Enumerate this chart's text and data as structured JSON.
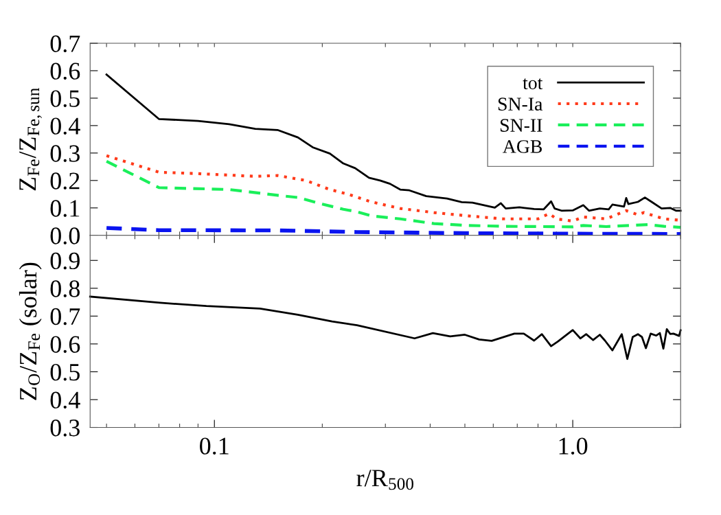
{
  "chart_data": [
    {
      "type": "line",
      "ylabel": "Z$_{Fe}$/Z$_{Fe,sun}$",
      "log": "x",
      "xlim": [
        0.045,
        2.0
      ],
      "xticks": [
        {
          "value": 0.05,
          "label": null
        },
        {
          "value": 0.06,
          "label": null
        },
        {
          "value": 0.07,
          "label": null
        },
        {
          "value": 0.08,
          "label": null
        },
        {
          "value": 0.09,
          "label": null
        },
        {
          "value": 0.1,
          "label": null
        },
        {
          "value": 0.2,
          "label": null
        },
        {
          "value": 0.3,
          "label": null
        },
        {
          "value": 0.4,
          "label": null
        },
        {
          "value": 0.5,
          "label": null
        },
        {
          "value": 0.6,
          "label": null
        },
        {
          "value": 0.7,
          "label": null
        },
        {
          "value": 0.8,
          "label": null
        },
        {
          "value": 0.9,
          "label": null
        },
        {
          "value": 1,
          "label": null
        },
        {
          "value": 2,
          "label": null
        }
      ],
      "ylim": [
        0.0,
        0.7
      ],
      "yticks": [
        {
          "value": 0,
          "label": "0.0"
        },
        0.1,
        0.2,
        0.3,
        0.4,
        0.5,
        0.6,
        0.7
      ],
      "tick_labels": "y",
      "legend": "top right",
      "grid": false,
      "series": [
        {
          "name": "tot",
          "color": "#000000",
          "line_style": "solid",
          "x": [
            0.05,
            0.07,
            0.09,
            0.11,
            0.13,
            0.15,
            0.171,
            0.188,
            0.21,
            0.229,
            0.247,
            0.27,
            0.29,
            0.309,
            0.33,
            0.35,
            0.39,
            0.446,
            0.49,
            0.525,
            0.606,
            0.63,
            0.65,
            0.71,
            0.78,
            0.83,
            0.87,
            0.89,
            0.93,
            1.0,
            1.07,
            1.11,
            1.19,
            1.26,
            1.29,
            1.39,
            1.41,
            1.43,
            1.52,
            1.59,
            1.66,
            1.77,
            1.87,
            1.94,
            2.0
          ],
          "values": [
            0.586,
            0.424,
            0.417,
            0.405,
            0.388,
            0.384,
            0.357,
            0.321,
            0.298,
            0.262,
            0.245,
            0.21,
            0.2,
            0.188,
            0.167,
            0.164,
            0.143,
            0.134,
            0.121,
            0.119,
            0.101,
            0.117,
            0.098,
            0.102,
            0.096,
            0.095,
            0.124,
            0.098,
            0.09,
            0.091,
            0.11,
            0.09,
            0.098,
            0.095,
            0.112,
            0.105,
            0.136,
            0.114,
            0.122,
            0.138,
            0.122,
            0.098,
            0.1,
            0.09,
            0.09
          ]
        },
        {
          "name": "SN-Ia",
          "color": "#ff3a1a",
          "line_style": "dotted",
          "x": [
            0.05,
            0.07,
            0.09,
            0.13,
            0.15,
            0.18,
            0.21,
            0.236,
            0.274,
            0.33,
            0.41,
            0.51,
            0.64,
            0.8,
            0.86,
            0.9,
            1.0,
            1.07,
            1.24,
            1.41,
            1.52,
            1.58,
            1.65,
            1.8,
            2.0
          ],
          "values": [
            0.29,
            0.23,
            0.225,
            0.215,
            0.218,
            0.2,
            0.167,
            0.15,
            0.122,
            0.098,
            0.083,
            0.071,
            0.06,
            0.06,
            0.079,
            0.06,
            0.052,
            0.067,
            0.06,
            0.09,
            0.075,
            0.083,
            0.075,
            0.06,
            0.055
          ]
        },
        {
          "name": "SN-II",
          "color": "#1aef5a",
          "line_style": "dashed",
          "x": [
            0.05,
            0.07,
            0.11,
            0.15,
            0.171,
            0.2,
            0.229,
            0.25,
            0.274,
            0.33,
            0.41,
            0.51,
            0.64,
            0.8,
            1.0,
            1.07,
            1.24,
            1.62,
            1.8,
            2.0
          ],
          "values": [
            0.27,
            0.174,
            0.167,
            0.146,
            0.138,
            0.114,
            0.095,
            0.086,
            0.071,
            0.06,
            0.043,
            0.036,
            0.033,
            0.032,
            0.031,
            0.036,
            0.032,
            0.039,
            0.033,
            0.029
          ]
        },
        {
          "name": "AGB",
          "color": "#0a14f0",
          "line_style": "dashed",
          "x": [
            0.05,
            0.07,
            0.15,
            0.25,
            0.5,
            1.0,
            2.0
          ],
          "values": [
            0.027,
            0.019,
            0.018,
            0.012,
            0.008,
            0.006,
            0.005
          ]
        }
      ]
    },
    {
      "type": "line",
      "ylabel": "Z$_{O}$/Z$_{Fe}$ (solar)",
      "xlabel": "r/R$_{500}$",
      "log": "x",
      "xlim": [
        0.045,
        2.0
      ],
      "xticks": [
        {
          "value": 0.05,
          "label": null
        },
        {
          "value": 0.06,
          "label": null
        },
        {
          "value": 0.07,
          "label": null
        },
        {
          "value": 0.08,
          "label": null
        },
        {
          "value": 0.09,
          "label": null
        },
        {
          "value": 0.1,
          "label": "0.1"
        },
        {
          "value": 0.2,
          "label": null
        },
        {
          "value": 0.3,
          "label": null
        },
        {
          "value": 0.4,
          "label": null
        },
        {
          "value": 0.5,
          "label": null
        },
        {
          "value": 0.6,
          "label": null
        },
        {
          "value": 0.7,
          "label": null
        },
        {
          "value": 0.8,
          "label": null
        },
        {
          "value": 0.9,
          "label": null
        },
        {
          "value": 1,
          "label": "1.0"
        },
        {
          "value": 2,
          "label": null
        }
      ],
      "ylim": [
        0.3,
        0.99
      ],
      "yticks": [
        0.3,
        0.4,
        0.5,
        0.6,
        0.7,
        0.8,
        0.9
      ],
      "grid": false,
      "series": [
        {
          "color": "#000000",
          "line_style": "solid",
          "x": [
            0.045,
            0.0705,
            0.095,
            0.134,
            0.171,
            0.213,
            0.25,
            0.362,
            0.407,
            0.455,
            0.5,
            0.548,
            0.594,
            0.687,
            0.73,
            0.78,
            0.82,
            0.87,
            0.91,
            1.0,
            1.05,
            1.09,
            1.14,
            1.19,
            1.23,
            1.29,
            1.37,
            1.42,
            1.47,
            1.52,
            1.56,
            1.6,
            1.65,
            1.71,
            1.75,
            1.79,
            1.83,
            1.87,
            1.91,
            1.98,
            2.0
          ],
          "values": [
            0.77,
            0.748,
            0.736,
            0.727,
            0.705,
            0.681,
            0.667,
            0.62,
            0.639,
            0.627,
            0.633,
            0.616,
            0.611,
            0.637,
            0.637,
            0.612,
            0.635,
            0.592,
            0.609,
            0.65,
            0.62,
            0.635,
            0.614,
            0.633,
            0.612,
            0.577,
            0.635,
            0.546,
            0.625,
            0.635,
            0.625,
            0.585,
            0.637,
            0.63,
            0.639,
            0.583,
            0.653,
            0.636,
            0.637,
            0.629,
            0.649
          ]
        }
      ]
    }
  ]
}
